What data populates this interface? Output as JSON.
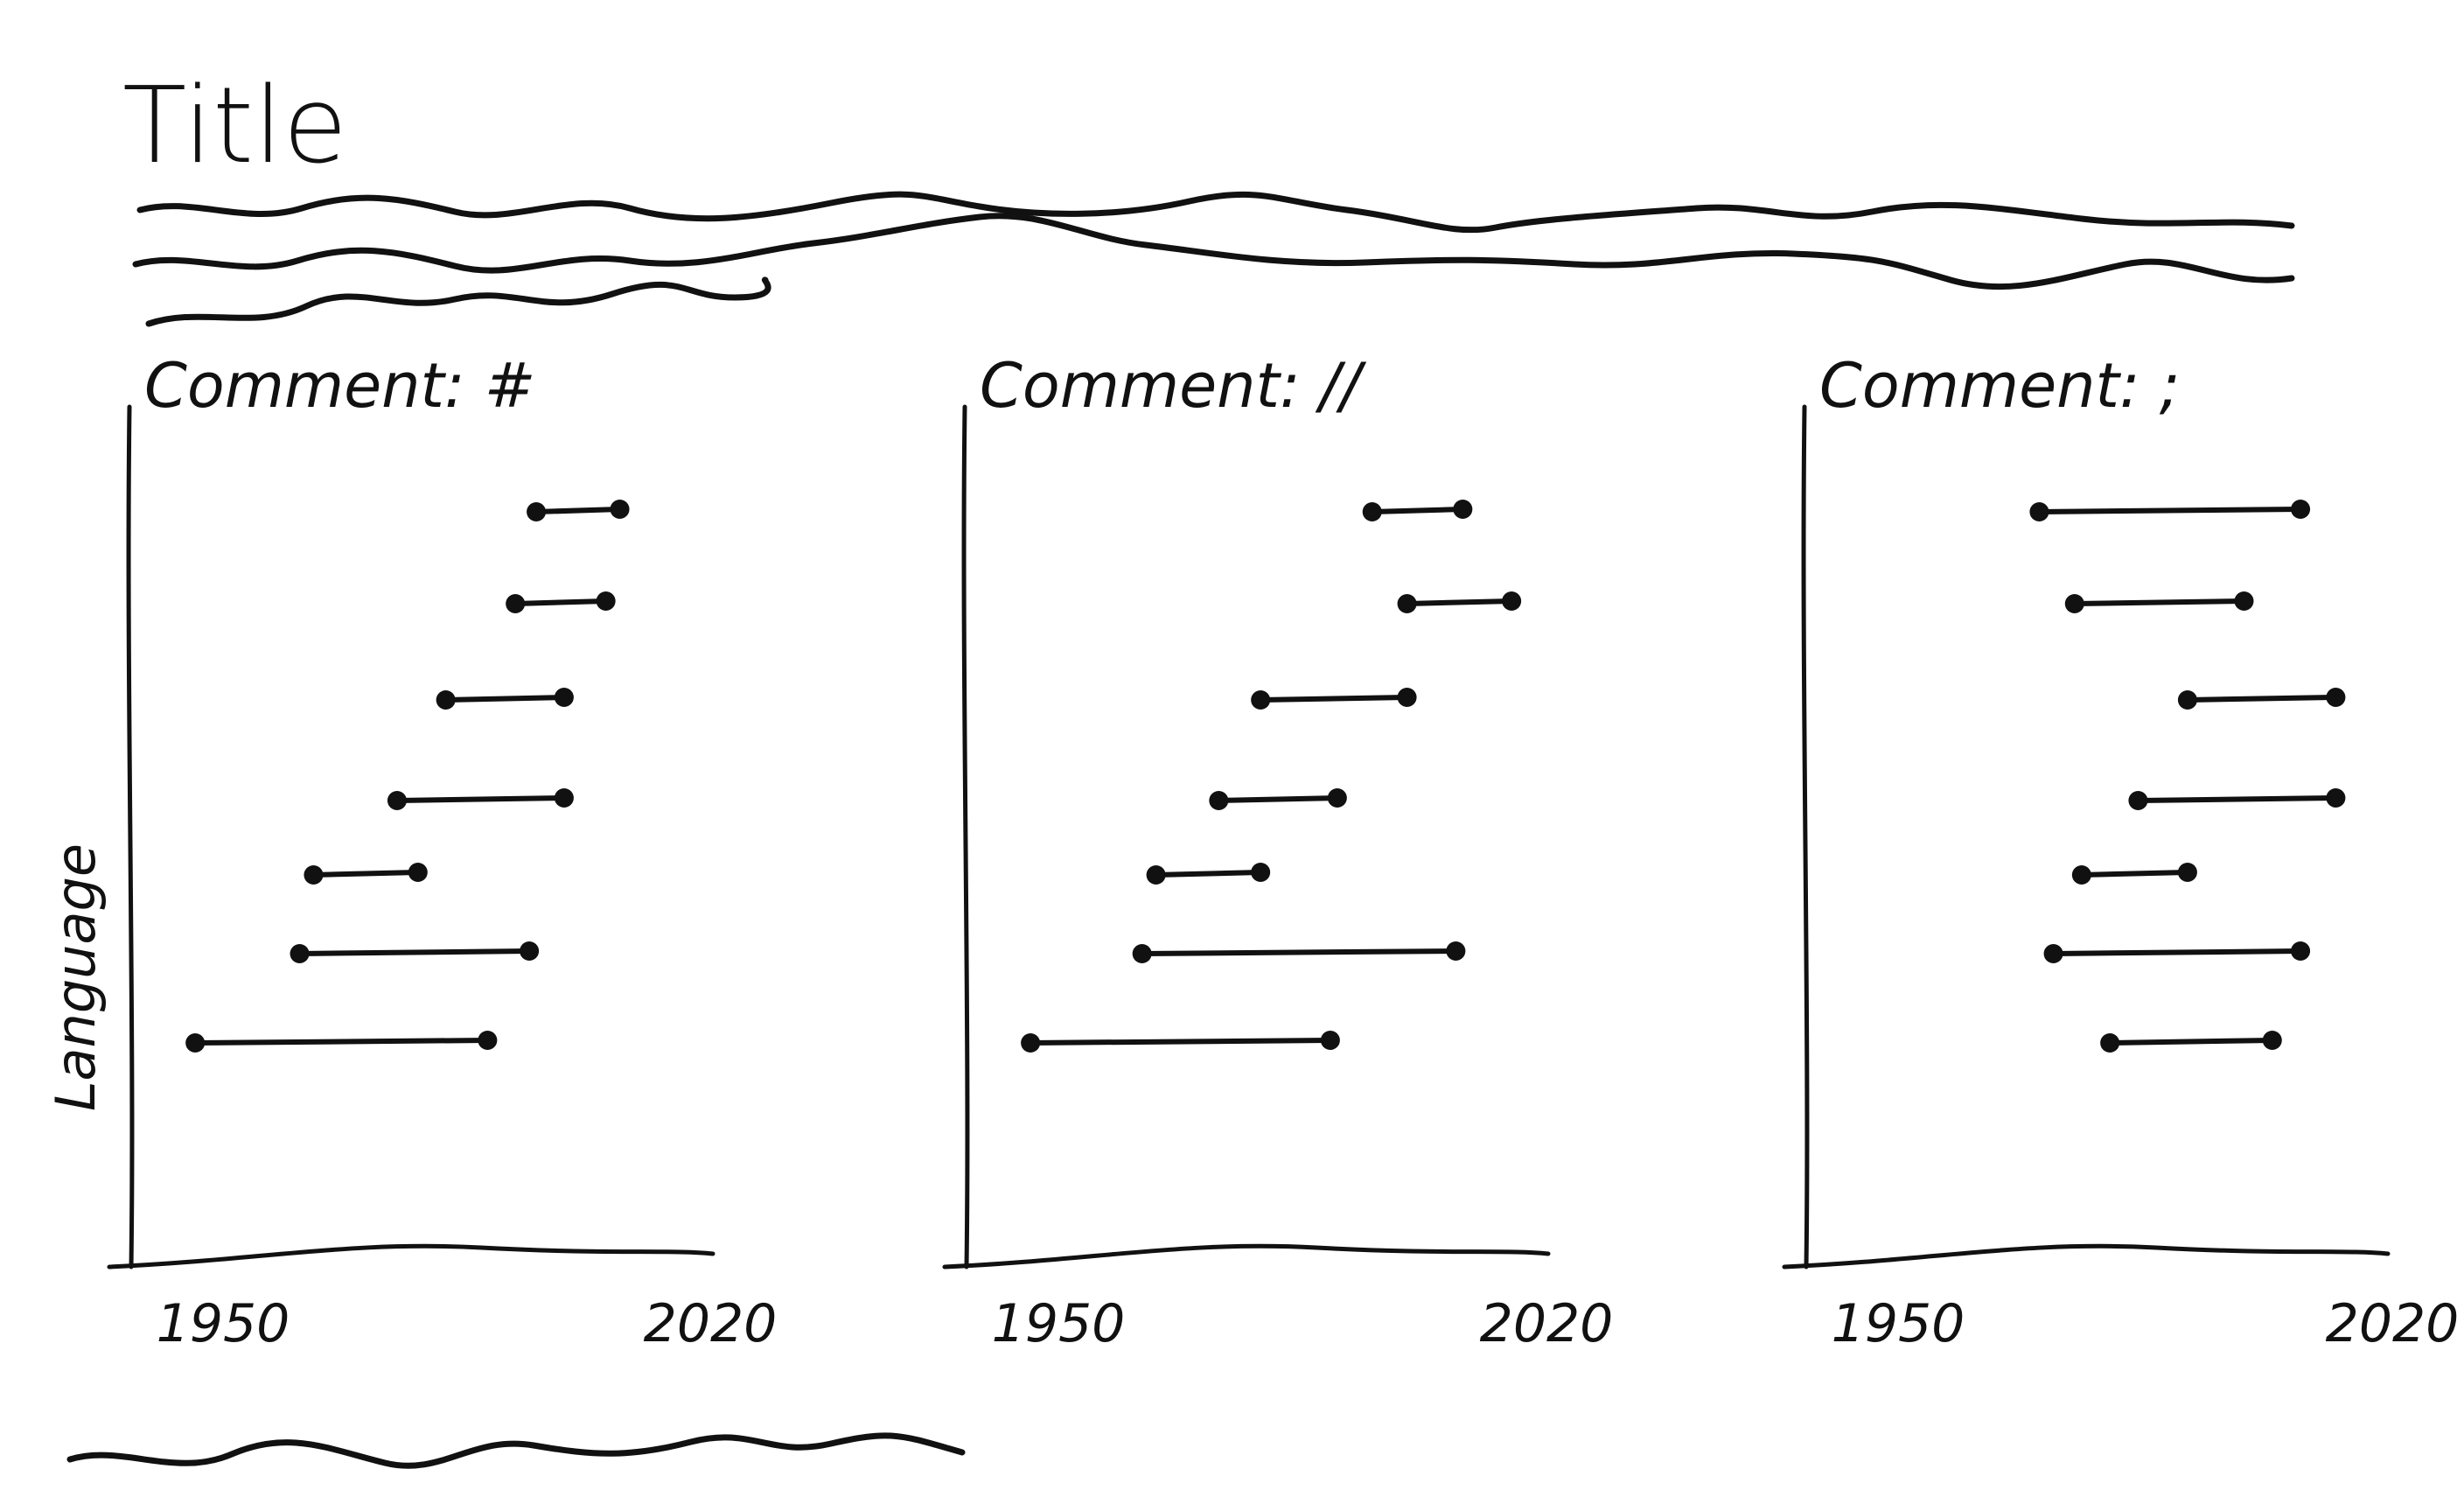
{
  "title": "Title",
  "y_axis_label": "Language",
  "chart_data": [
    {
      "type": "dumbbell",
      "title": "Comment: #",
      "xlabel": "",
      "ylabel": "Language",
      "x_ticks": [
        "1950",
        "2020"
      ],
      "xlim": [
        1950,
        2020
      ],
      "rows": [
        {
          "start": 1995,
          "end": 2007
        },
        {
          "start": 1992,
          "end": 2005
        },
        {
          "start": 1982,
          "end": 1999
        },
        {
          "start": 1975,
          "end": 1999
        },
        {
          "start": 1963,
          "end": 1978
        },
        {
          "start": 1961,
          "end": 1994
        },
        {
          "start": 1946,
          "end": 1988
        }
      ]
    },
    {
      "type": "dumbbell",
      "title": "Comment: //",
      "xlabel": "",
      "ylabel": "",
      "x_ticks": [
        "1950",
        "2020"
      ],
      "xlim": [
        1950,
        2020
      ],
      "rows": [
        {
          "start": 1995,
          "end": 2008
        },
        {
          "start": 2000,
          "end": 2015
        },
        {
          "start": 1979,
          "end": 2000
        },
        {
          "start": 1973,
          "end": 1990
        },
        {
          "start": 1964,
          "end": 1979
        },
        {
          "start": 1962,
          "end": 2007
        },
        {
          "start": 1946,
          "end": 1989
        }
      ]
    },
    {
      "type": "dumbbell",
      "title": "Comment: ;",
      "xlabel": "",
      "ylabel": "",
      "x_ticks": [
        "1950",
        "2020"
      ],
      "xlim": [
        1950,
        2020
      ],
      "rows": [
        {
          "start": 1970,
          "end": 2007
        },
        {
          "start": 1975,
          "end": 1999
        },
        {
          "start": 1991,
          "end": 2012
        },
        {
          "start": 1984,
          "end": 2012
        },
        {
          "start": 1976,
          "end": 1991
        },
        {
          "start": 1972,
          "end": 2007
        },
        {
          "start": 1980,
          "end": 2003
        }
      ]
    }
  ]
}
